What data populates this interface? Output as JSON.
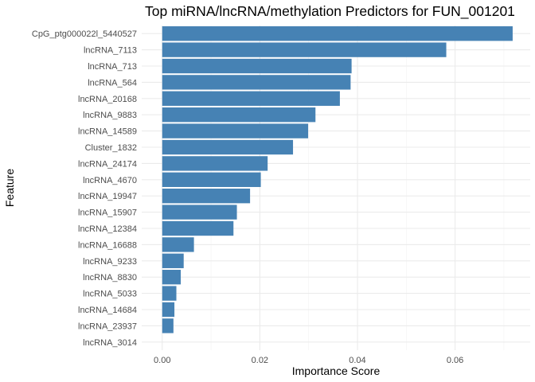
{
  "chart_data": {
    "type": "bar",
    "orientation": "horizontal",
    "title": "Top miRNA/lncRNA/methylation Predictors for FUN_001201",
    "xlabel": "Importance Score",
    "ylabel": "Feature",
    "xlim": [
      -0.0042,
      0.0754
    ],
    "x_ticks": [
      0.0,
      0.02,
      0.04,
      0.06
    ],
    "x_tick_labels": [
      "0.00",
      "0.02",
      "0.04",
      "0.06"
    ],
    "grid": true,
    "bar_color": "#4682B4",
    "categories": [
      "CpG_ptg000022l_5440527",
      "lncRNA_7113",
      "lncRNA_713",
      "lncRNA_564",
      "lncRNA_20168",
      "lncRNA_9883",
      "lncRNA_14589",
      "Cluster_1832",
      "lncRNA_24174",
      "lncRNA_4670",
      "lncRNA_19947",
      "lncRNA_15907",
      "lncRNA_12384",
      "lncRNA_16688",
      "lncRNA_9233",
      "lncRNA_8830",
      "lncRNA_5033",
      "lncRNA_14684",
      "lncRNA_23937",
      "lncRNA_3014"
    ],
    "values": [
      0.0718,
      0.0582,
      0.0388,
      0.0386,
      0.0364,
      0.0314,
      0.0299,
      0.0268,
      0.0216,
      0.0202,
      0.018,
      0.0153,
      0.0146,
      0.0065,
      0.0044,
      0.0038,
      0.0029,
      0.0025,
      0.0023,
      0.0
    ]
  }
}
